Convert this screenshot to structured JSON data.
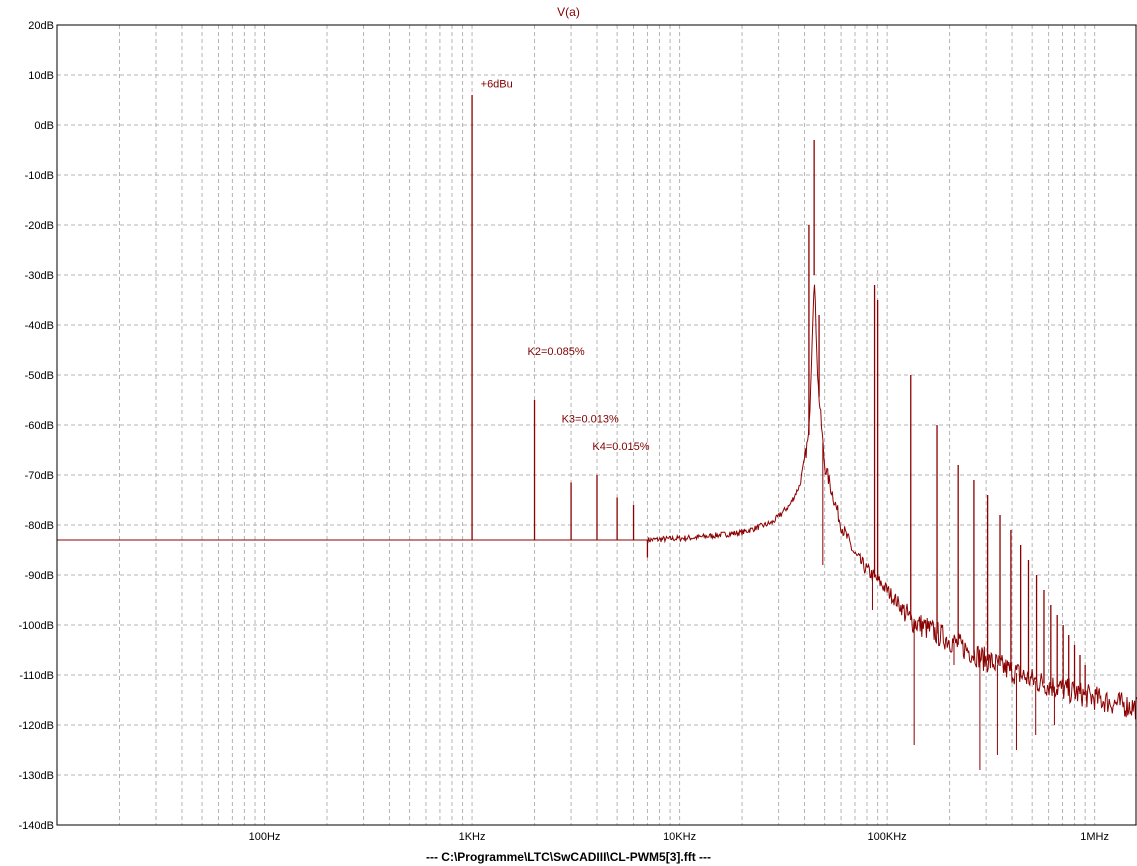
{
  "window": {
    "title": "V(a)",
    "file_label": "---  C:\\Programme\\LTC\\SwCADIII\\CL-PWM5[3].fft  ---"
  },
  "colors": {
    "trace": "#8b0000",
    "annotation": "#800000",
    "grid": "#b4b4b4",
    "axis": "#000000"
  },
  "chart_data": {
    "type": "line",
    "title": "V(a)",
    "xscale": "log",
    "xlim": [
      10,
      1600000
    ],
    "ylim": [
      -140,
      20
    ],
    "grid": true,
    "x_ticks": [
      {
        "value": 100,
        "label": "100Hz"
      },
      {
        "value": 1000,
        "label": "1KHz"
      },
      {
        "value": 10000,
        "label": "10KHz"
      },
      {
        "value": 100000,
        "label": "100KHz"
      },
      {
        "value": 1000000,
        "label": "1MHz"
      }
    ],
    "y_ticks": [
      {
        "value": 20,
        "label": "20dB"
      },
      {
        "value": 10,
        "label": "10dB"
      },
      {
        "value": 0,
        "label": "0dB"
      },
      {
        "value": -10,
        "label": "-10dB"
      },
      {
        "value": -20,
        "label": "-20dB"
      },
      {
        "value": -30,
        "label": "-30dB"
      },
      {
        "value": -40,
        "label": "-40dB"
      },
      {
        "value": -50,
        "label": "-50dB"
      },
      {
        "value": -60,
        "label": "-60dB"
      },
      {
        "value": -70,
        "label": "-70dB"
      },
      {
        "value": -80,
        "label": "-80dB"
      },
      {
        "value": -90,
        "label": "-90dB"
      },
      {
        "value": -100,
        "label": "-100dB"
      },
      {
        "value": -110,
        "label": "-110dB"
      },
      {
        "value": -120,
        "label": "-120dB"
      },
      {
        "value": -130,
        "label": "-130dB"
      },
      {
        "value": -140,
        "label": "-140dB"
      }
    ],
    "series": [
      {
        "baseline": [
          [
            10,
            -83
          ],
          [
            7000,
            -83
          ],
          [
            12000,
            -82.5
          ],
          [
            20000,
            -81.5
          ],
          [
            28000,
            -79.5
          ],
          [
            34000,
            -76
          ],
          [
            38000,
            -72
          ],
          [
            42000,
            -62
          ],
          [
            44500,
            -30
          ],
          [
            46500,
            -52
          ],
          [
            50000,
            -68
          ],
          [
            60000,
            -80
          ],
          [
            70000,
            -86
          ],
          [
            80000,
            -89
          ],
          [
            95000,
            -92
          ],
          [
            110000,
            -95
          ],
          [
            130000,
            -99
          ],
          [
            200000,
            -103
          ],
          [
            300000,
            -107
          ],
          [
            500000,
            -111
          ],
          [
            800000,
            -113.5
          ],
          [
            1200000,
            -115.5
          ],
          [
            1600000,
            -116.5
          ]
        ],
        "peaks": [
          [
            1000,
            6
          ],
          [
            2000,
            -55
          ],
          [
            3000,
            -71.5
          ],
          [
            4000,
            -70
          ],
          [
            5000,
            -74.5
          ],
          [
            6000,
            -76
          ],
          [
            7000,
            -86.5
          ],
          [
            42000,
            -20
          ],
          [
            44500,
            -3
          ],
          [
            47000,
            -38
          ],
          [
            87000,
            -32
          ],
          [
            90000,
            -35
          ],
          [
            130000,
            -50
          ],
          [
            174000,
            -60
          ],
          [
            220000,
            -68
          ],
          [
            262000,
            -71
          ],
          [
            305000,
            -74
          ],
          [
            350000,
            -78
          ],
          [
            395000,
            -81
          ],
          [
            440000,
            -84
          ],
          [
            480000,
            -87
          ],
          [
            525000,
            -90
          ],
          [
            570000,
            -93
          ],
          [
            615000,
            -96
          ],
          [
            660000,
            -98
          ],
          [
            705000,
            -100
          ],
          [
            750000,
            -102
          ],
          [
            800000,
            -104
          ],
          [
            850000,
            -106
          ],
          [
            900000,
            -108
          ]
        ],
        "dips": [
          [
            49000,
            -88
          ],
          [
            85000,
            -97
          ],
          [
            135000,
            -124
          ],
          [
            210000,
            -108
          ],
          [
            280000,
            -129
          ],
          [
            340000,
            -126
          ],
          [
            420000,
            -125
          ],
          [
            520000,
            -122
          ],
          [
            640000,
            -120
          ]
        ]
      }
    ],
    "annotations": [
      {
        "text": "+6dBu",
        "x": 1100,
        "y": 7.5
      },
      {
        "text": "K2=0.085%",
        "x": 1850,
        "y": -46
      },
      {
        "text": "K3=0.013%",
        "x": 2700,
        "y": -59.5
      },
      {
        "text": "K4=0.015%",
        "x": 3800,
        "y": -65
      }
    ]
  }
}
